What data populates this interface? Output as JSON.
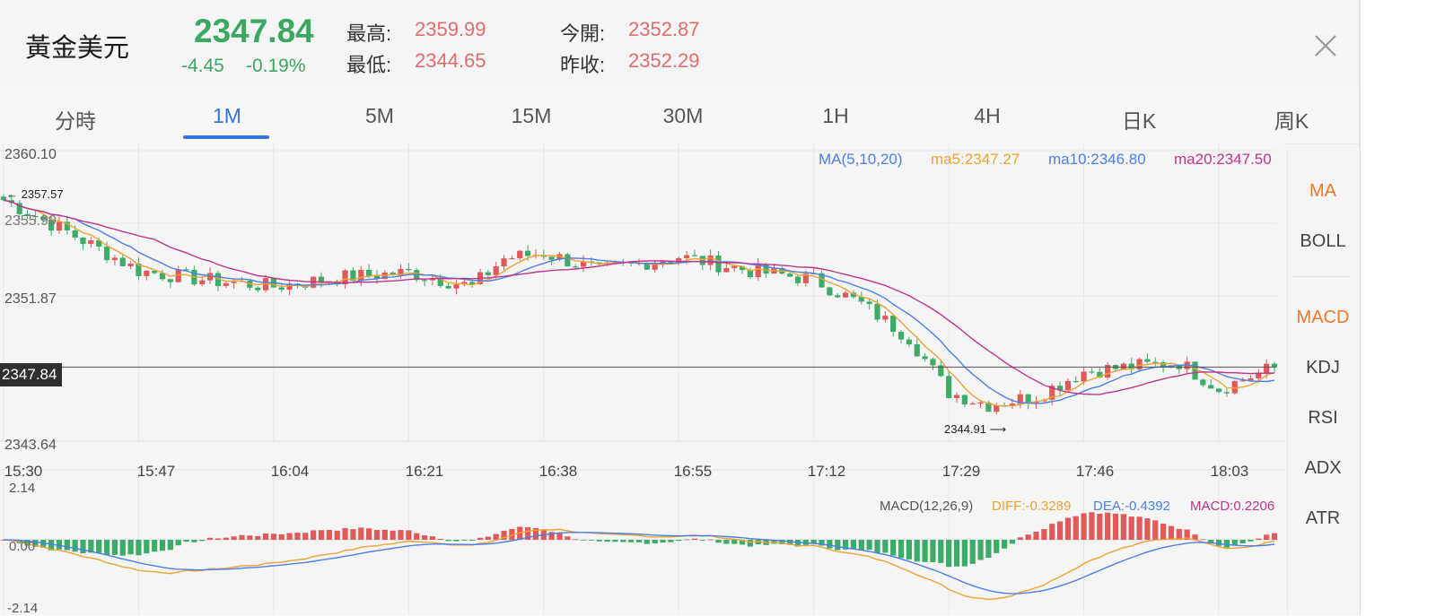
{
  "header": {
    "title": "黃金美元",
    "price": "2347.84",
    "change": "-4.45",
    "change_pct": "-0.19%",
    "high_label": "最高:",
    "high_value": "2359.99",
    "low_label": "最低:",
    "low_value": "2344.65",
    "open_label": "今開:",
    "open_value": "2352.87",
    "prev_close_label": "昨收:",
    "prev_close_value": "2352.29"
  },
  "tabs": [
    {
      "label": "分時",
      "active": false
    },
    {
      "label": "1M",
      "active": true
    },
    {
      "label": "5M",
      "active": false
    },
    {
      "label": "15M",
      "active": false
    },
    {
      "label": "30M",
      "active": false
    },
    {
      "label": "1H",
      "active": false
    },
    {
      "label": "4H",
      "active": false
    },
    {
      "label": "日K",
      "active": false
    },
    {
      "label": "周K",
      "active": false
    }
  ],
  "indicators": {
    "main": [
      {
        "label": "MA",
        "active": true
      },
      {
        "label": "BOLL",
        "active": false
      }
    ],
    "sub": [
      {
        "label": "MACD",
        "active": true
      },
      {
        "label": "KDJ",
        "active": false
      },
      {
        "label": "RSI",
        "active": false
      },
      {
        "label": "ADX",
        "active": false
      },
      {
        "label": "ATR",
        "active": false
      }
    ]
  },
  "main_chart": {
    "legend_label": "MA(5,10,20)",
    "ma5": "ma5:2347.27",
    "ma10": "ma10:2346.80",
    "ma20": "ma20:2347.50",
    "y_top": "2360.10",
    "y_mid1": "2355.99",
    "y_mid2": "2351.87",
    "y_bottom": "2343.64",
    "current_price_tag": "2347.84",
    "high_marker": "2357.57",
    "low_marker": "2344.91"
  },
  "x_labels": [
    "15:30",
    "15:47",
    "16:04",
    "16:21",
    "16:38",
    "16:55",
    "17:12",
    "17:29",
    "17:46",
    "18:03"
  ],
  "macd_panel": {
    "legend_label": "MACD(12,26,9)",
    "diff": "DIFF:-0.3289",
    "dea": "DEA:-0.4392",
    "macd": "MACD:0.2206",
    "y_top": "2.14",
    "y_zero": "0.00",
    "y_bottom": "-2.14"
  },
  "colors": {
    "up": "#e05a5a",
    "down": "#3dac68",
    "ma5": "#f0a232",
    "ma10": "#4c7fe8",
    "ma20": "#c2348a",
    "accent": "#3572e5",
    "indicator_active": "#f0782c"
  },
  "chart_data": {
    "type": "candlestick",
    "x_range": [
      "15:30",
      "18:10"
    ],
    "ylim": [
      2343.64,
      2360.1
    ],
    "grid": true,
    "close_path": [
      [
        "15:30",
        2357.3
      ],
      [
        "15:38",
        2355.5
      ],
      [
        "15:47",
        2353.3
      ],
      [
        "15:55",
        2352.8
      ],
      [
        "16:04",
        2352.4
      ],
      [
        "16:12",
        2352.9
      ],
      [
        "16:21",
        2353.2
      ],
      [
        "16:29",
        2352.4
      ],
      [
        "16:33",
        2354.0
      ],
      [
        "16:38",
        2354.3
      ],
      [
        "16:45",
        2353.3
      ],
      [
        "16:55",
        2354.1
      ],
      [
        "17:04",
        2353.3
      ],
      [
        "17:12",
        2352.8
      ],
      [
        "17:18",
        2351.4
      ],
      [
        "17:24",
        2349.5
      ],
      [
        "17:29",
        2346.4
      ],
      [
        "17:34",
        2345.7
      ],
      [
        "17:40",
        2346.2
      ],
      [
        "17:46",
        2347.6
      ],
      [
        "17:53",
        2347.9
      ],
      [
        "17:58",
        2348.1
      ],
      [
        "18:03",
        2346.6
      ],
      [
        "18:10",
        2347.84
      ]
    ],
    "macd_ylim": [
      -2.14,
      2.14
    ]
  }
}
